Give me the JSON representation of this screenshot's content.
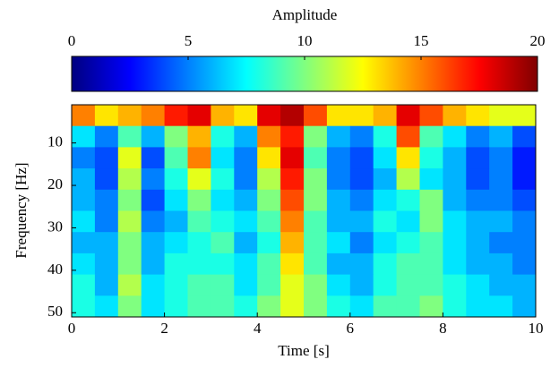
{
  "chart_data": {
    "type": "heatmap",
    "colorbar_label": "Amplitude",
    "colormap": "jet",
    "zlim": [
      0,
      20
    ],
    "colorbar_ticks": [
      0,
      5,
      10,
      15,
      20
    ],
    "x_label": "Time [s]",
    "y_label": "Frequency [Hz]",
    "xlim": [
      0,
      10
    ],
    "xticks": [
      0,
      2,
      4,
      6,
      8,
      10
    ],
    "ylim": [
      1,
      51
    ],
    "yticks": [
      10,
      20,
      30,
      40,
      50
    ],
    "y_inverted": true,
    "x": [
      0.25,
      0.75,
      1.25,
      1.75,
      2.25,
      2.75,
      3.25,
      3.75,
      4.25,
      4.75,
      5.25,
      5.75,
      6.25,
      6.75,
      7.25,
      7.75,
      8.25,
      8.75,
      9.25,
      9.75
    ],
    "y": [
      3.5,
      8.5,
      13.5,
      18.5,
      23.5,
      28.5,
      33.5,
      38.5,
      43.5,
      48.5
    ],
    "z": [
      [
        15,
        13,
        14,
        15,
        17,
        18,
        14,
        13,
        18,
        19,
        16,
        13,
        13,
        14,
        18,
        16,
        14,
        13,
        12,
        12
      ],
      [
        7,
        5,
        9,
        6,
        10,
        14,
        8,
        6,
        15,
        17,
        10,
        6,
        5,
        8,
        16,
        9,
        7,
        5,
        6,
        4
      ],
      [
        5,
        4,
        12,
        4,
        9,
        15,
        7,
        5,
        13,
        18,
        9,
        5,
        4,
        7,
        13,
        8,
        6,
        4,
        5,
        3
      ],
      [
        6,
        4,
        11,
        5,
        8,
        12,
        8,
        5,
        11,
        17,
        10,
        5,
        4,
        6,
        11,
        7,
        6,
        4,
        5,
        3
      ],
      [
        6,
        5,
        10,
        4,
        7,
        10,
        7,
        6,
        10,
        16,
        10,
        6,
        5,
        7,
        8,
        10,
        6,
        5,
        5,
        4
      ],
      [
        7,
        5,
        11,
        5,
        6,
        9,
        8,
        7,
        9,
        15,
        9,
        6,
        6,
        8,
        7,
        10,
        7,
        6,
        6,
        5
      ],
      [
        6,
        6,
        10,
        6,
        7,
        8,
        9,
        6,
        8,
        14,
        9,
        7,
        5,
        7,
        8,
        9,
        7,
        6,
        5,
        5
      ],
      [
        7,
        6,
        10,
        6,
        8,
        8,
        8,
        7,
        9,
        13,
        9,
        6,
        6,
        8,
        9,
        9,
        7,
        6,
        6,
        5
      ],
      [
        8,
        6,
        11,
        7,
        8,
        9,
        9,
        7,
        9,
        12,
        10,
        7,
        6,
        8,
        9,
        9,
        8,
        7,
        6,
        6
      ],
      [
        8,
        7,
        10,
        7,
        8,
        9,
        9,
        8,
        10,
        12,
        10,
        8,
        7,
        9,
        9,
        10,
        8,
        7,
        7,
        6
      ]
    ]
  }
}
